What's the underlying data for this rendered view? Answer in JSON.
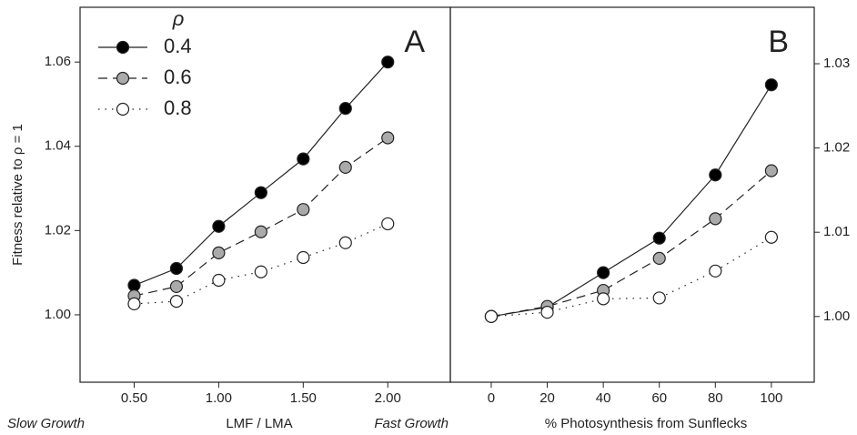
{
  "chart_data": [
    {
      "type": "line",
      "title": "A",
      "ylabel": "Fitness relative to ρ = 1",
      "xlabel": "LMF / LMA",
      "x_note_left": "Slow Growth",
      "x_note_right": "Fast Growth",
      "x": [
        0.5,
        0.75,
        1.0,
        1.25,
        1.5,
        1.75,
        2.0
      ],
      "series": [
        {
          "name": "0.4",
          "color": "#000000",
          "line_style": "solid",
          "values": [
            1.007,
            1.011,
            1.021,
            1.029,
            1.037,
            1.049,
            1.06
          ]
        },
        {
          "name": "0.6",
          "color": "#aaaaaa",
          "line_style": "dashed",
          "values": [
            1.0045,
            1.0067,
            1.0147,
            1.0197,
            1.025,
            1.035,
            1.042
          ]
        },
        {
          "name": "0.8",
          "color": "#ffffff",
          "line_style": "dotted",
          "values": [
            1.0026,
            1.0032,
            1.0082,
            1.0102,
            1.0136,
            1.0171,
            1.0216
          ]
        }
      ],
      "legend_title": "ρ",
      "legend": "upper left",
      "y_axis_side": "left",
      "xlim": [
        0.18,
        2.37
      ],
      "ylim": [
        0.984,
        1.073
      ],
      "xticks": [
        {
          "value": 0.5,
          "label": "0.50"
        },
        {
          "value": 1.0,
          "label": "1.00"
        },
        {
          "value": 1.5,
          "label": "1.50"
        },
        {
          "value": 2.0,
          "label": "2.00"
        }
      ],
      "yticks": [
        {
          "value": 1.0,
          "label": "1.00"
        },
        {
          "value": 1.02,
          "label": "1.02"
        },
        {
          "value": 1.04,
          "label": "1.04"
        },
        {
          "value": 1.06,
          "label": "1.06"
        }
      ]
    },
    {
      "type": "line",
      "title": "B",
      "xlabel": "% Photosynthesis from Sunflecks",
      "x": [
        0,
        20,
        40,
        60,
        80,
        100
      ],
      "series": [
        {
          "name": "0.4",
          "color": "#000000",
          "line_style": "solid",
          "values": [
            1.0,
            1.0011,
            1.0052,
            1.0093,
            1.0168,
            1.0275
          ]
        },
        {
          "name": "0.6",
          "color": "#aaaaaa",
          "line_style": "dashed",
          "values": [
            1.0,
            1.0012,
            1.0031,
            1.0069,
            1.0116,
            1.0173
          ]
        },
        {
          "name": "0.8",
          "color": "#ffffff",
          "line_style": "dotted",
          "values": [
            1.0,
            1.0005,
            1.0021,
            1.0022,
            1.0054,
            1.0094
          ]
        }
      ],
      "y_axis_side": "right",
      "xlim": [
        -14.6,
        115.3
      ],
      "ylim": [
        0.9922,
        1.0367
      ],
      "xticks": [
        0,
        20,
        40,
        60,
        80,
        100
      ],
      "yticks": [
        {
          "value": 1.0,
          "label": "1.00"
        },
        {
          "value": 1.01,
          "label": "1.01"
        },
        {
          "value": 1.02,
          "label": "1.02"
        },
        {
          "value": 1.03,
          "label": "1.03"
        }
      ]
    }
  ]
}
